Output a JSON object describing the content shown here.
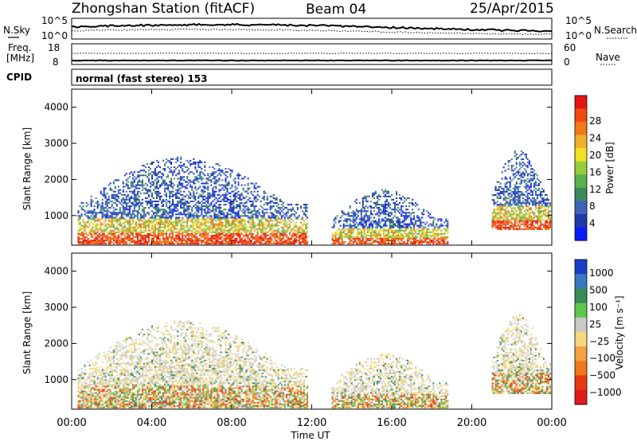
{
  "header": {
    "station": "Zhongshan Station (fitACF)",
    "beam": "Beam 04",
    "date": "25/Apr/2015"
  },
  "strip": {
    "nsky_label": "N.Sky",
    "nsky_ticks": [
      "10^5",
      "10^0"
    ],
    "nsearch_label": "N.Search",
    "nsearch_ticks": [
      "10^5",
      "10^0"
    ],
    "freq_label": "Freq.",
    "freq_unit": "[MHz]",
    "freq_ticks": [
      "18",
      "8"
    ],
    "nave_label": "Nave",
    "nave_ticks": [
      "60",
      "0"
    ],
    "cpid_label": "CPID",
    "cpid_value": "normal (fast stereo) 153"
  },
  "chart_data": [
    {
      "type": "heatmap",
      "name": "power-panel",
      "xlabel": "Time UT",
      "ylabel": "Slant Range [km]",
      "xlim": [
        0,
        24
      ],
      "ylim": [
        180,
        4500
      ],
      "x_ticks": [
        "00:00",
        "04:00",
        "08:00",
        "12:00",
        "16:00",
        "20:00",
        "00:00"
      ],
      "y_ticks": [
        "1000",
        "2000",
        "3000",
        "4000"
      ],
      "colorbar": {
        "label": "Power [dB]",
        "ticks": [
          "4",
          "8",
          "12",
          "16",
          "20",
          "24",
          "28"
        ],
        "colors": [
          "#0a1bff",
          "#1f3aa8",
          "#3d62b8",
          "#3c8a5a",
          "#58b04e",
          "#93cf3c",
          "#f0e020",
          "#f0b02a",
          "#f07a18",
          "#ee4a10",
          "#e41414"
        ]
      },
      "echo_regions": [
        {
          "t": [
            0.3,
            11.8
          ],
          "r": [
            200,
            2600
          ],
          "level": "mixed"
        },
        {
          "t": [
            13.0,
            18.8
          ],
          "r": [
            200,
            1700
          ],
          "level": "mixed"
        },
        {
          "t": [
            21.0,
            23.9
          ],
          "r": [
            600,
            2800
          ],
          "level": "mixed"
        }
      ]
    },
    {
      "type": "heatmap",
      "name": "velocity-panel",
      "xlabel": "Time UT",
      "ylabel": "Slant Range [km]",
      "xlim": [
        0,
        24
      ],
      "ylim": [
        180,
        4500
      ],
      "x_ticks": [
        "00:00",
        "04:00",
        "08:00",
        "12:00",
        "16:00",
        "20:00",
        "00:00"
      ],
      "y_ticks": [
        "1000",
        "2000",
        "3000",
        "4000"
      ],
      "colorbar": {
        "label": "Velocity [m s⁻¹]",
        "ticks": [
          "1000",
          "500",
          "100",
          "25",
          "−25",
          "−100",
          "−500",
          "−1000"
        ],
        "colors": [
          "#1a3ec8",
          "#3a78c0",
          "#3a8a5a",
          "#5ec84a",
          "#c8c8c4",
          "#f5d87a",
          "#f5a040",
          "#f07818",
          "#e83a10",
          "#e01a1a"
        ]
      },
      "echo_regions": [
        {
          "t": [
            0.3,
            11.8
          ],
          "r": [
            200,
            2600
          ],
          "level": "mixed"
        },
        {
          "t": [
            13.0,
            18.8
          ],
          "r": [
            200,
            1700
          ],
          "level": "mixed"
        },
        {
          "t": [
            21.0,
            23.9
          ],
          "r": [
            600,
            2800
          ],
          "level": "mixed"
        }
      ]
    }
  ]
}
